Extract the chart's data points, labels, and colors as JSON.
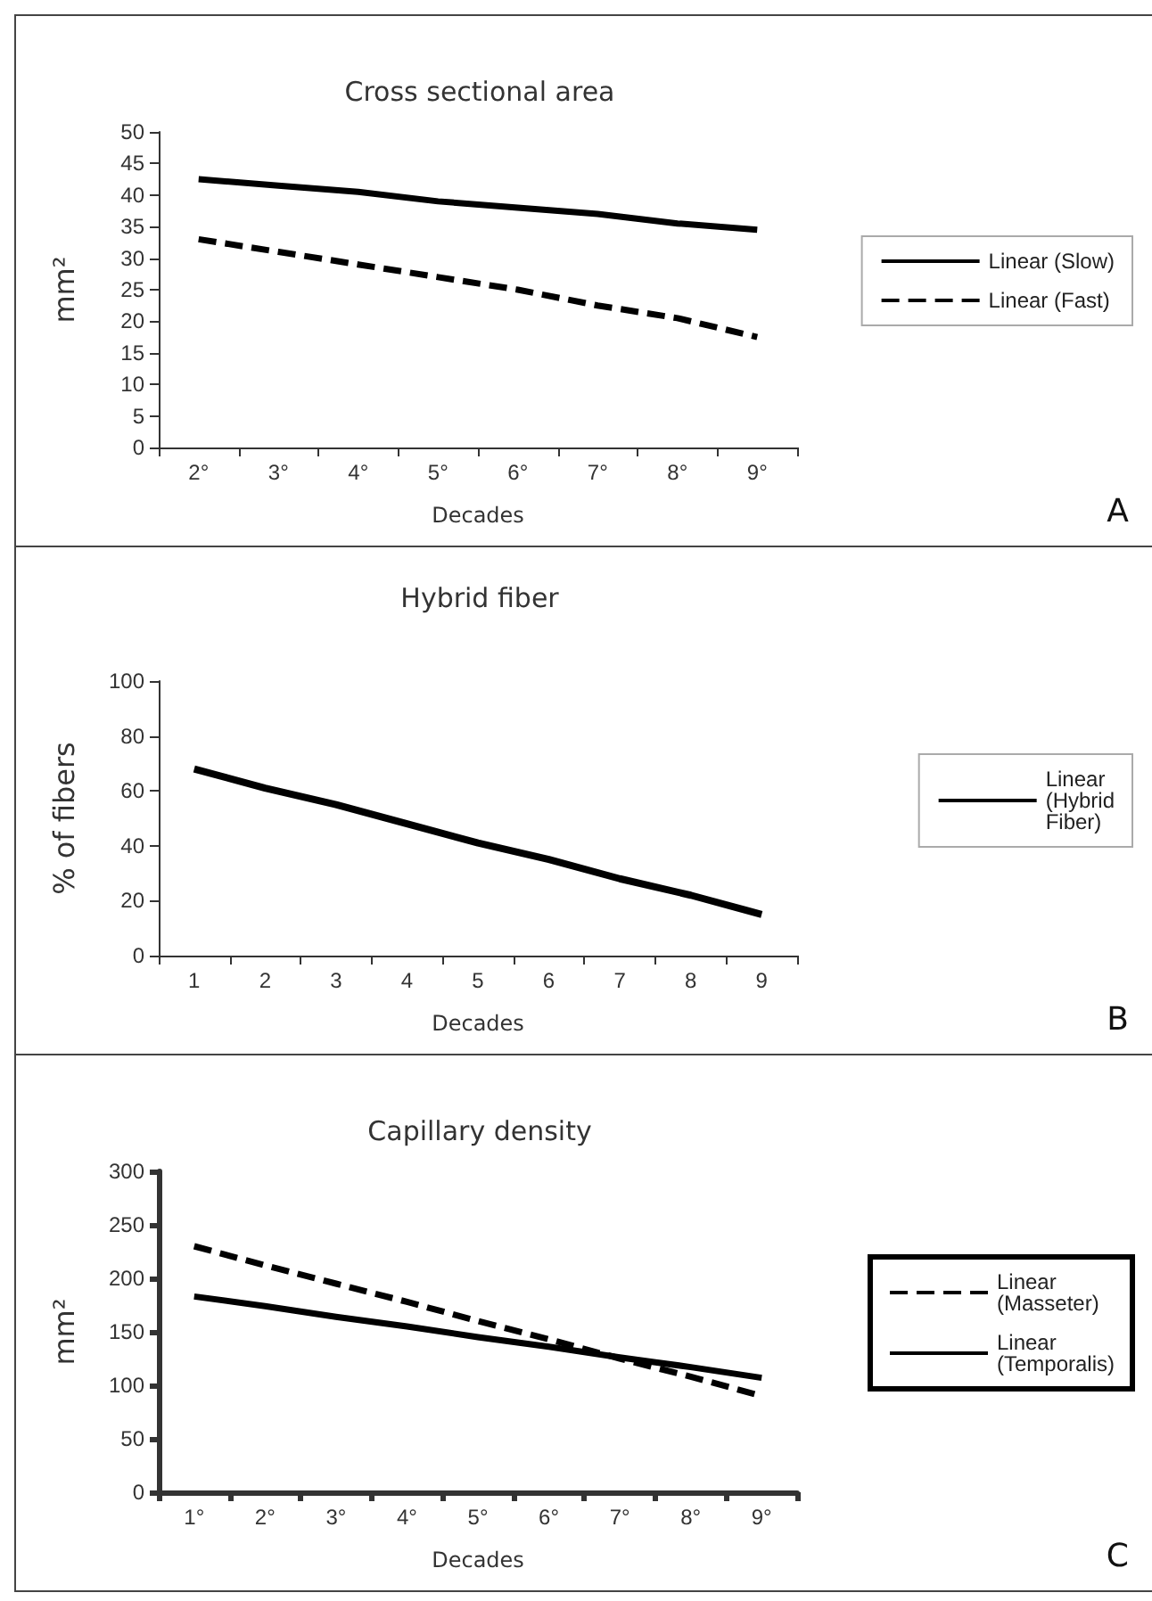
{
  "chart_data": [
    {
      "type": "line",
      "title": "Cross sectional area",
      "xlabel": "Decades",
      "ylabel": "mm²",
      "categories": [
        "2°",
        "3°",
        "4°",
        "5°",
        "6°",
        "7°",
        "8°",
        "9°"
      ],
      "series": [
        {
          "name": "Linear (Slow)",
          "color": "#000000",
          "line_style": "solid",
          "values": [
            42.5,
            41.5,
            40.5,
            39,
            38,
            37,
            35.5,
            34.5
          ]
        },
        {
          "name": "Linear (Fast)",
          "color": "#000000",
          "line_style": "dashed",
          "values": [
            33,
            31,
            29,
            27,
            25,
            22.5,
            20.5,
            17.5
          ]
        }
      ],
      "ylim": [
        0,
        50
      ],
      "yticks": [
        0,
        5,
        10,
        15,
        20,
        25,
        30,
        35,
        40,
        45,
        50
      ],
      "grid": false,
      "legend": "right",
      "marker": "none",
      "annotations": [
        "A"
      ]
    },
    {
      "type": "line",
      "title": "Hybrid fiber",
      "xlabel": "Decades",
      "ylabel": "% of fibers",
      "categories": [
        "1",
        "2",
        "3",
        "4",
        "5",
        "6",
        "7",
        "8",
        "9"
      ],
      "series": [
        {
          "name": "Linear (Hybrid Fiber)",
          "color": "#000000",
          "line_style": "solid",
          "values": [
            68,
            61,
            55,
            48,
            41,
            35,
            28,
            22,
            15
          ]
        }
      ],
      "ylim": [
        0,
        100
      ],
      "yticks": [
        0,
        20,
        40,
        60,
        80,
        100
      ],
      "grid": false,
      "legend": "right",
      "marker": "none",
      "annotations": [
        "B"
      ]
    },
    {
      "type": "line",
      "title": "Capillary density",
      "xlabel": "Decades",
      "ylabel": "mm²",
      "categories": [
        "1°",
        "2°",
        "3°",
        "4°",
        "5°",
        "6°",
        "7°",
        "8°",
        "9°"
      ],
      "series": [
        {
          "name": "Linear (Masseter)",
          "color": "#000000",
          "line_style": "dashed",
          "values": [
            230,
            212,
            195,
            178,
            160,
            143,
            125,
            108,
            90
          ]
        },
        {
          "name": "Linear (Temporalis)",
          "color": "#000000",
          "line_style": "solid",
          "values": [
            183,
            174,
            164,
            155,
            145,
            136,
            126,
            117,
            107
          ]
        }
      ],
      "ylim": [
        0,
        300
      ],
      "yticks": [
        0,
        50,
        100,
        150,
        200,
        250,
        300
      ],
      "grid": false,
      "legend": "right",
      "marker": "none",
      "annotations": [
        "C"
      ]
    }
  ]
}
